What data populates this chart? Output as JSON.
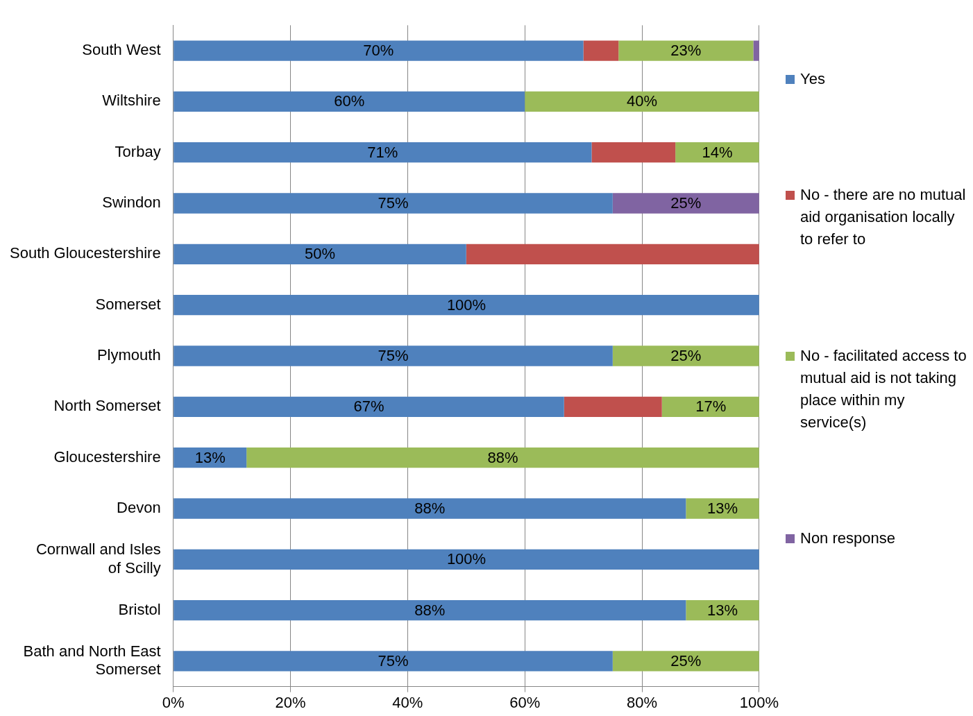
{
  "chart_data": {
    "type": "bar",
    "orientation": "horizontal",
    "stacked": true,
    "categories": [
      "South West",
      "Wiltshire",
      "Torbay",
      "Swindon",
      "South Gloucestershire",
      "Somerset",
      "Plymouth",
      "North Somerset",
      "Gloucestershire",
      "Devon",
      "Cornwall and Isles of Scilly",
      "Bristol",
      "Bath and North East Somerset"
    ],
    "series": [
      {
        "name": "Yes",
        "color": "#4f81bd",
        "values": [
          70,
          60,
          71.4,
          75,
          50,
          100,
          75,
          66.7,
          12.5,
          87.5,
          100,
          87.5,
          75
        ],
        "value_labels": [
          "70%",
          "60%",
          "71%",
          "75%",
          "50%",
          "100%",
          "75%",
          "67%",
          "13%",
          "88%",
          "100%",
          "88%",
          "75%"
        ]
      },
      {
        "name": "No - there are no mutual aid organisation locally to refer to",
        "color": "#c0504d",
        "values": [
          6,
          0,
          14.3,
          0,
          50,
          0,
          0,
          16.7,
          0,
          0,
          0,
          0,
          0
        ],
        "value_labels": [
          null,
          null,
          null,
          null,
          null,
          null,
          null,
          null,
          null,
          null,
          null,
          null,
          null
        ]
      },
      {
        "name": "No - facilitated access to mutual aid is not taking place within my service(s)",
        "color": "#9bbb59",
        "values": [
          23,
          40,
          14.3,
          0,
          0,
          0,
          25,
          16.7,
          87.5,
          12.5,
          0,
          12.5,
          25
        ],
        "value_labels": [
          "23%",
          "40%",
          "14%",
          null,
          null,
          null,
          "25%",
          "17%",
          "88%",
          "13%",
          null,
          "13%",
          "25%"
        ]
      },
      {
        "name": "Non response",
        "color": "#8064a2",
        "values": [
          1,
          0,
          0,
          25,
          0,
          0,
          0,
          0,
          0,
          0,
          0,
          0,
          0
        ],
        "value_labels": [
          null,
          null,
          null,
          "25%",
          null,
          null,
          null,
          null,
          null,
          null,
          null,
          null,
          null
        ]
      }
    ],
    "xlim": [
      0,
      100
    ],
    "xticks": [
      {
        "value": 0,
        "label": "0%"
      },
      {
        "value": 20,
        "label": "20%"
      },
      {
        "value": 40,
        "label": "40%"
      },
      {
        "value": 60,
        "label": "60%"
      },
      {
        "value": 80,
        "label": "80%"
      },
      {
        "value": 100,
        "label": "100%"
      }
    ],
    "grid": "x",
    "legend": "right"
  }
}
